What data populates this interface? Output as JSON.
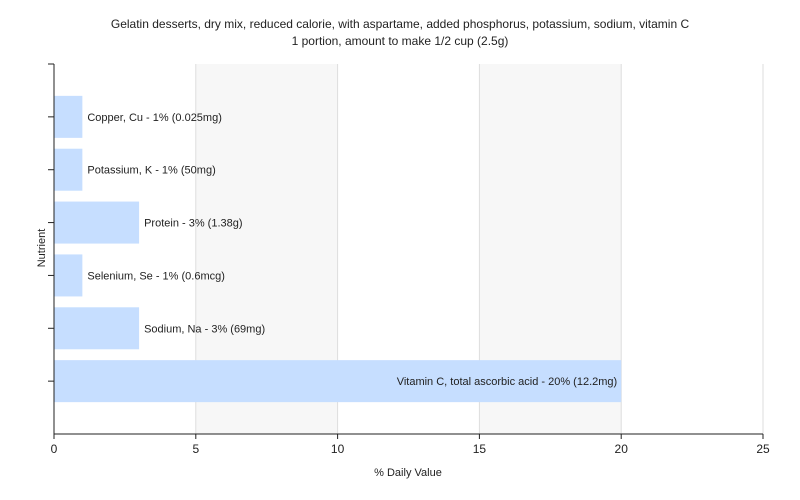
{
  "chart_data": {
    "type": "bar",
    "orientation": "horizontal",
    "title": "Gelatin desserts, dry mix, reduced calorie, with aspartame, added phosphorus, potassium, sodium, vitamin C",
    "subtitle": "1 portion, amount to make 1/2 cup (2.5g)",
    "xlabel": "% Daily Value",
    "ylabel": "Nutrient",
    "xlim": [
      0,
      25
    ],
    "xticks": [
      0,
      5,
      10,
      15,
      20,
      25
    ],
    "grid": true,
    "bar_color": "#c6deff",
    "categories": [
      "Copper, Cu",
      "Potassium, K",
      "Protein",
      "Selenium, Se",
      "Sodium, Na",
      "Vitamin C, total ascorbic acid"
    ],
    "values": [
      1,
      1,
      3,
      1,
      3,
      20
    ],
    "labels": [
      "Copper, Cu - 1% (0.025mg)",
      "Potassium, K - 1% (50mg)",
      "Protein - 3% (1.38g)",
      "Selenium, Se - 1% (0.6mcg)",
      "Sodium, Na - 3% (69mg)",
      "Vitamin C, total ascorbic acid - 20% (12.2mg)"
    ]
  }
}
